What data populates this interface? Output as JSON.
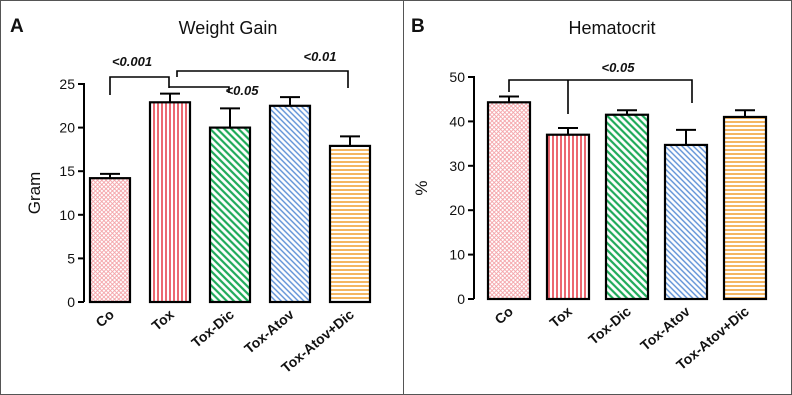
{
  "colors": {
    "co": "#f4a3a8",
    "tox": "#e8424d",
    "tox_dic": "#1faa5a",
    "tox_atov": "#5b8fd6",
    "tox_atov_dic": "#f2a33a"
  },
  "chart_data": [
    {
      "type": "bar",
      "panel_letter": "A",
      "title": "Weight Gain",
      "xlabel": "",
      "ylabel": "Gram",
      "ylim": [
        0,
        25
      ],
      "yticks": [
        "0",
        "5",
        "10",
        "15",
        "20",
        "25"
      ],
      "categories": [
        "Co",
        "Tox",
        "Tox-Dic",
        "Tox-Atov",
        "Tox-Atov+Dic"
      ],
      "values": [
        14.2,
        22.9,
        20.0,
        22.5,
        17.9
      ],
      "errors": [
        0.5,
        1.0,
        2.2,
        1.0,
        1.1
      ],
      "annotations": [
        "<0.001",
        "<0.05",
        "<0.01"
      ],
      "grid": false,
      "legend": "none"
    },
    {
      "type": "bar",
      "panel_letter": "B",
      "title": "Hematocrit",
      "xlabel": "",
      "ylabel": "%",
      "ylim": [
        0,
        50
      ],
      "yticks": [
        "0",
        "10",
        "20",
        "30",
        "40",
        "50"
      ],
      "categories": [
        "Co",
        "Tox",
        "Tox-Dic",
        "Tox-Atov",
        "Tox-Atov+Dic"
      ],
      "values": [
        44.3,
        37.0,
        41.5,
        34.7,
        41.0
      ],
      "errors": [
        1.3,
        1.5,
        1.0,
        3.4,
        1.5
      ],
      "annotations": [
        "<0.05"
      ],
      "grid": false,
      "legend": "none"
    }
  ]
}
